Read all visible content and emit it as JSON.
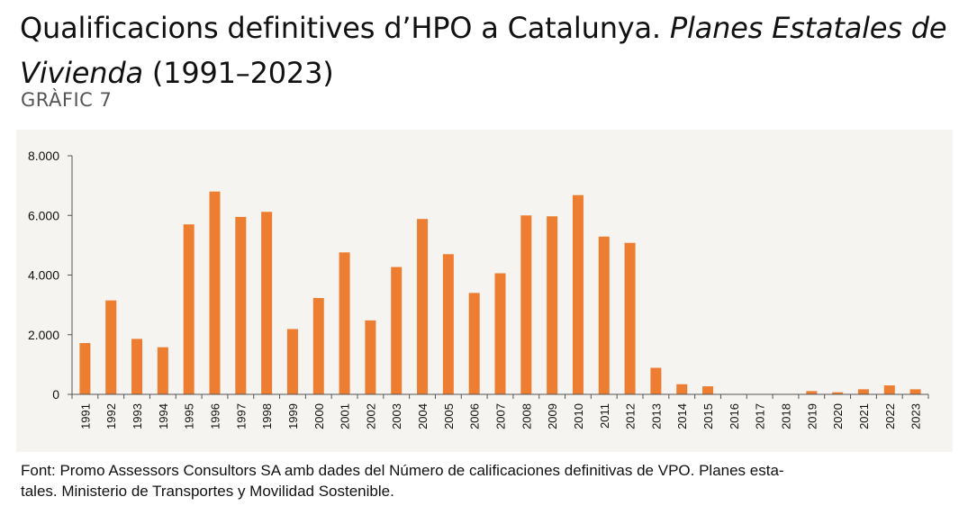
{
  "header": {
    "title_part1": "Qualificacions definitives d’HPO a Catalunya. ",
    "title_part2": "Planes Estatales de Vivienda",
    "title_part3": " (1991–2023)",
    "subtitle": "GRÀFIC 7"
  },
  "footer": {
    "source_line1": "Font: Promo Assessors Consultors SA amb dades del Número de calificaciones definitivas de VPO. Planes esta-",
    "source_line2": "tales. Ministerio de Transportes y Movilidad Sostenible."
  },
  "colors": {
    "bar": "#ed7d31",
    "panel_background": "#f6f4f0",
    "axis": "#555555"
  },
  "chart_data": {
    "type": "bar",
    "title": "",
    "xlabel": "",
    "ylabel": "",
    "ylim": [
      0,
      8000
    ],
    "yticks": [
      0,
      2000,
      4000,
      6000,
      8000
    ],
    "ytick_labels": [
      "0",
      "2.000",
      "4.000",
      "6.000",
      "8.000"
    ],
    "grid": false,
    "legend": "none",
    "categories": [
      "1991",
      "1992",
      "1993",
      "1994",
      "1995",
      "1996",
      "1997",
      "1998",
      "1999",
      "2000",
      "2001",
      "2002",
      "2003",
      "2004",
      "2005",
      "2006",
      "2007",
      "2008",
      "2009",
      "2010",
      "2011",
      "2012",
      "2013",
      "2014",
      "2015",
      "2016",
      "2017",
      "2018",
      "2019",
      "2020",
      "2021",
      "2022",
      "2023"
    ],
    "values": [
      1720,
      3150,
      1860,
      1580,
      5700,
      6800,
      5950,
      6120,
      2190,
      3230,
      4760,
      2480,
      4270,
      5880,
      4700,
      3400,
      4060,
      6000,
      5970,
      6680,
      5290,
      5080,
      890,
      340,
      270,
      0,
      0,
      0,
      110,
      70,
      170,
      300,
      170
    ]
  }
}
